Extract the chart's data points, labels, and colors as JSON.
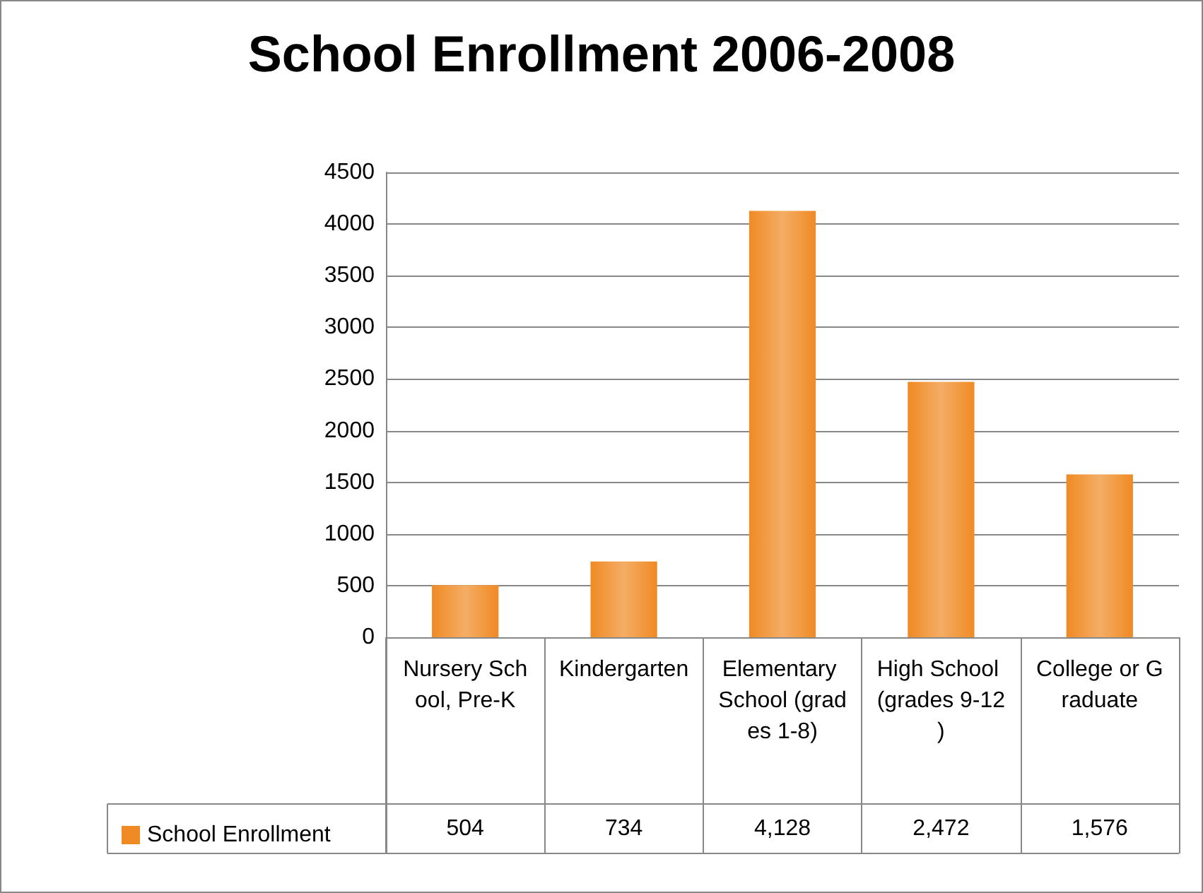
{
  "chart_data": {
    "type": "bar",
    "title": "School Enrollment 2006-2008",
    "categories": [
      "Nursery School, Pre-K",
      "Kindergarten",
      "Elementary School (grades 1-8)",
      "High School (grades 9-12)",
      "College or Graduate"
    ],
    "series": [
      {
        "name": "School Enrollment",
        "color": "#f08a24",
        "values": [
          504,
          734,
          4128,
          2472,
          1576
        ],
        "value_labels": [
          "504",
          "734",
          "4,128",
          "2,472",
          "1,576"
        ]
      }
    ],
    "ylim": [
      0,
      4500
    ],
    "yticks": [
      0,
      500,
      1000,
      1500,
      2000,
      2500,
      3000,
      3500,
      4000,
      4500
    ],
    "grid": "y",
    "legend": "bottom left"
  }
}
